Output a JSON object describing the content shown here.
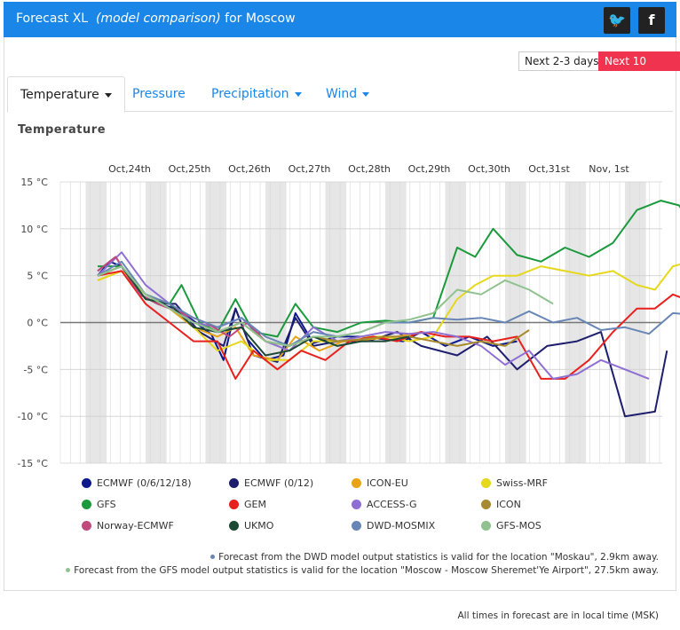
{
  "header": {
    "title_prefix": "Forecast XL",
    "title_italic": "(model comparison)",
    "title_suffix": "for Moscow",
    "twitter_glyph": "🐦",
    "facebook_glyph": "f",
    "icons": [
      "twitter-icon",
      "facebook-icon"
    ],
    "bg_color": "#1a86e8"
  },
  "range_buttons": [
    "Next 2-3 days",
    "Next 10 days"
  ],
  "active_range": "Next 10 days",
  "tabs": [
    {
      "label": "Temperature",
      "active": true
    },
    {
      "label": "Pressure",
      "active": false
    },
    {
      "label": "Precipitation",
      "active": false
    },
    {
      "label": "Wind",
      "active": false
    }
  ],
  "section_title": "Temperature",
  "chart_data": {
    "type": "line",
    "title": "Temperature",
    "x_unit": "days",
    "x_range": [
      0,
      10
    ],
    "x_day_labels": [
      "Oct,24th",
      "Oct,25th",
      "Oct,26th",
      "Oct,27th",
      "Oct,28th",
      "Oct,29th",
      "Oct,30th",
      "Oct,31st",
      "Nov, 1st"
    ],
    "ylim": [
      -15,
      15
    ],
    "yticks": [
      "15 °C",
      "10 °C",
      "5 °C",
      "0 °C",
      "-5 °C",
      "-10 °C",
      "-15 °C"
    ],
    "grid": true,
    "series": [
      {
        "name": "ECMWF (0/6/12/18)",
        "color": "#0d1a8c",
        "x": [
          0,
          0.2,
          0.4,
          0.7,
          1.0,
          1.3,
          1.6,
          1.9,
          2.1,
          2.3,
          2.5,
          2.8,
          3.1,
          3.3,
          3.6,
          4.0,
          4.4,
          4.8,
          5.1,
          5.4,
          5.8,
          6.2,
          6.6,
          7.0
        ],
        "y": [
          5,
          6.5,
          6,
          3,
          2,
          1.5,
          0.2,
          -1.3,
          -4,
          1.5,
          -1.8,
          -4,
          -3.5,
          1,
          -2.2,
          -1.5,
          -1.5,
          -1.8,
          -2,
          -1,
          -2.5,
          -1.5,
          -2.5,
          -2
        ]
      },
      {
        "name": "ECMWF (0/12)",
        "color": "#1e1e6e",
        "x": [
          0,
          0.3,
          0.7,
          1.0,
          1.3,
          1.7,
          2.1,
          2.3,
          2.6,
          3.0,
          3.3,
          3.6,
          4.0,
          4.5,
          5.0,
          5.4,
          6.0,
          6.5,
          7.0,
          7.5,
          8.0,
          8.4,
          8.8,
          9.3,
          9.5
        ],
        "y": [
          5.5,
          7,
          3,
          2,
          2,
          -1,
          -2.5,
          1.5,
          -3.5,
          -4.2,
          0.5,
          -2.5,
          -2,
          -2,
          -1,
          -2.5,
          -3.5,
          -1.5,
          -5,
          -2.5,
          -2,
          -1,
          -10,
          -9.5,
          -3
        ]
      },
      {
        "name": "ICON-EU",
        "color": "#e8a317",
        "x": [
          0,
          0.4,
          0.8,
          1.2,
          1.6,
          2.0,
          2.3,
          2.6,
          3.0,
          3.3,
          3.7,
          4.1,
          4.5,
          5.0,
          5.4
        ],
        "y": [
          4.5,
          5.5,
          3,
          1.5,
          -0.5,
          -1.5,
          -0.5,
          -3.5,
          -4,
          -1.5,
          -3,
          -2,
          -1.8,
          -1.5,
          -1
        ]
      },
      {
        "name": "Swiss-MRF",
        "color": "#e6d81c",
        "x": [
          0,
          0.4,
          0.8,
          1.2,
          1.6,
          2.0,
          2.4,
          2.8,
          3.2,
          3.6,
          4.0,
          4.4,
          4.8,
          5.2,
          5.6,
          6.0,
          6.3,
          6.6,
          7.0,
          7.4,
          7.8,
          8.2,
          8.6,
          9.0,
          9.3,
          9.6,
          9.9
        ],
        "y": [
          4.5,
          5.5,
          3,
          2,
          -0.5,
          -3,
          -2,
          -4,
          -4,
          -2,
          -2,
          -1.5,
          -1.5,
          -2,
          -1.5,
          2.5,
          4,
          5,
          5,
          6,
          5.5,
          5,
          5.5,
          4,
          3.5,
          6,
          6.5
        ]
      },
      {
        "name": "GFS",
        "color": "#1a9a3c",
        "x": [
          0,
          0.4,
          0.8,
          1.2,
          1.4,
          1.7,
          2.0,
          2.3,
          2.6,
          3.0,
          3.3,
          3.6,
          4.0,
          4.4,
          4.8,
          5.2,
          5.6,
          6.0,
          6.3,
          6.6,
          7.0,
          7.4,
          7.8,
          8.2,
          8.6,
          9.0,
          9.2,
          9.4,
          9.7,
          10.0,
          10.2
        ],
        "y": [
          6,
          6,
          3,
          2,
          4,
          0,
          -1,
          2.5,
          -1,
          -1.5,
          2,
          -0.5,
          -1,
          0,
          0.2,
          0,
          0.5,
          8,
          7,
          10,
          7.2,
          6.5,
          8,
          7,
          8.5,
          12,
          12.5,
          13,
          12.5,
          10,
          8
        ]
      },
      {
        "name": "GEM",
        "color": "#e8201e",
        "x": [
          0,
          0.4,
          0.8,
          1.2,
          1.6,
          2.0,
          2.3,
          2.6,
          3.0,
          3.4,
          3.8,
          4.2,
          4.6,
          5.0,
          5.4,
          5.8,
          6.2,
          6.6,
          7.0,
          7.4,
          7.8,
          8.2,
          8.6,
          9.0,
          9.3,
          9.6,
          10.0
        ],
        "y": [
          5,
          5.5,
          2,
          0,
          -2,
          -2,
          -6,
          -3,
          -5,
          -3,
          -4,
          -2,
          -1.5,
          -2,
          -1,
          -1.5,
          -1.5,
          -2,
          -1.5,
          -6,
          -6,
          -4,
          -1,
          1.5,
          1.5,
          3,
          2
        ]
      },
      {
        "name": "ACCESS-G",
        "color": "#8f6fd4",
        "x": [
          0,
          0.4,
          0.8,
          1.2,
          1.6,
          2.0,
          2.4,
          2.8,
          3.2,
          3.6,
          4.0,
          4.4,
          4.8,
          5.2,
          5.6,
          6.0,
          6.4,
          6.8,
          7.2,
          7.6,
          8.0,
          8.4,
          8.8,
          9.2
        ],
        "y": [
          5,
          7.5,
          4,
          2,
          0,
          -0.5,
          0.5,
          -2,
          -3,
          -0.5,
          -2,
          -1.5,
          -1,
          -1.2,
          -1,
          -1.5,
          -2.5,
          -4.5,
          -3,
          -6,
          -5.5,
          -4,
          -5,
          -6
        ]
      },
      {
        "name": "ICON",
        "color": "#a88a2e",
        "x": [
          0,
          0.4,
          0.8,
          1.2,
          1.6,
          2.0,
          2.4,
          2.8,
          3.2,
          3.6,
          4.0,
          4.4,
          4.8,
          5.2,
          5.6,
          6.0,
          6.4,
          6.8,
          7.2
        ],
        "y": [
          5,
          6,
          3,
          1.5,
          0,
          -1,
          0,
          -2,
          -2.5,
          -1.5,
          -2,
          -1.8,
          -1.5,
          -1.5,
          -2,
          -2.5,
          -2,
          -2.5,
          -0.8
        ]
      },
      {
        "name": "Norway-ECMWF",
        "color": "#c04a7c",
        "x": [
          0,
          0.3,
          0.7,
          1.0,
          1.4,
          1.8,
          2.2,
          2.5,
          2.8
        ],
        "y": [
          5.5,
          7,
          3,
          2,
          1,
          0,
          -1.5,
          0,
          -2
        ]
      },
      {
        "name": "UKMO",
        "color": "#1c4a34",
        "x": [
          0,
          0.4,
          0.8,
          1.2,
          1.6,
          2.0,
          2.4,
          2.8,
          3.2,
          3.6,
          4.0,
          4.4,
          4.8,
          5.2
        ],
        "y": [
          5,
          6,
          2.5,
          2,
          -0.5,
          -1,
          -0.5,
          -3.5,
          -3,
          -1.5,
          -2.5,
          -2,
          -2,
          -1.5
        ]
      },
      {
        "name": "DWD-MOSMIX",
        "color": "#6886b5",
        "x": [
          0,
          0.4,
          0.8,
          1.2,
          1.6,
          2.0,
          2.4,
          2.8,
          3.2,
          3.6,
          4.0,
          4.4,
          4.8,
          5.2,
          5.6,
          6.0,
          6.4,
          6.8,
          7.2,
          7.6,
          8.0,
          8.4,
          8.8,
          9.2,
          9.6,
          10.0,
          10.3
        ],
        "y": [
          5,
          6.5,
          3,
          2,
          0.5,
          -0.5,
          0.5,
          -1.5,
          -2.5,
          -1,
          -1.5,
          -1,
          0,
          0,
          0.5,
          0.3,
          0.5,
          0,
          1.2,
          0,
          0.5,
          -0.8,
          -0.5,
          -1.2,
          1,
          0.8,
          2.5
        ]
      },
      {
        "name": "GFS-MOS",
        "color": "#8fc28f",
        "x": [
          0,
          0.4,
          0.8,
          1.2,
          1.6,
          2.0,
          2.4,
          2.8,
          3.2,
          3.6,
          4.0,
          4.4,
          4.8,
          5.2,
          5.6,
          6.0,
          6.4,
          6.8,
          7.2,
          7.6
        ],
        "y": [
          5,
          6,
          3,
          1.5,
          0,
          -1,
          0,
          -2,
          -2.5,
          -1.5,
          -1.5,
          -1,
          0,
          0.3,
          1,
          3.5,
          3,
          4.5,
          3.5,
          2
        ]
      }
    ]
  },
  "notes": [
    {
      "text": "Forecast from the DWD model output statistics is valid for the location \"Moskau\", 2.9km away.",
      "color": "#6886b5"
    },
    {
      "text": "Forecast from the GFS model output statistics is valid for the location \"Moscow - Moscow Sheremet'Ye Airport\", 27.5km away.",
      "color": "#8fc28f"
    }
  ],
  "footer": "All times in forecast are in local time (MSK)"
}
